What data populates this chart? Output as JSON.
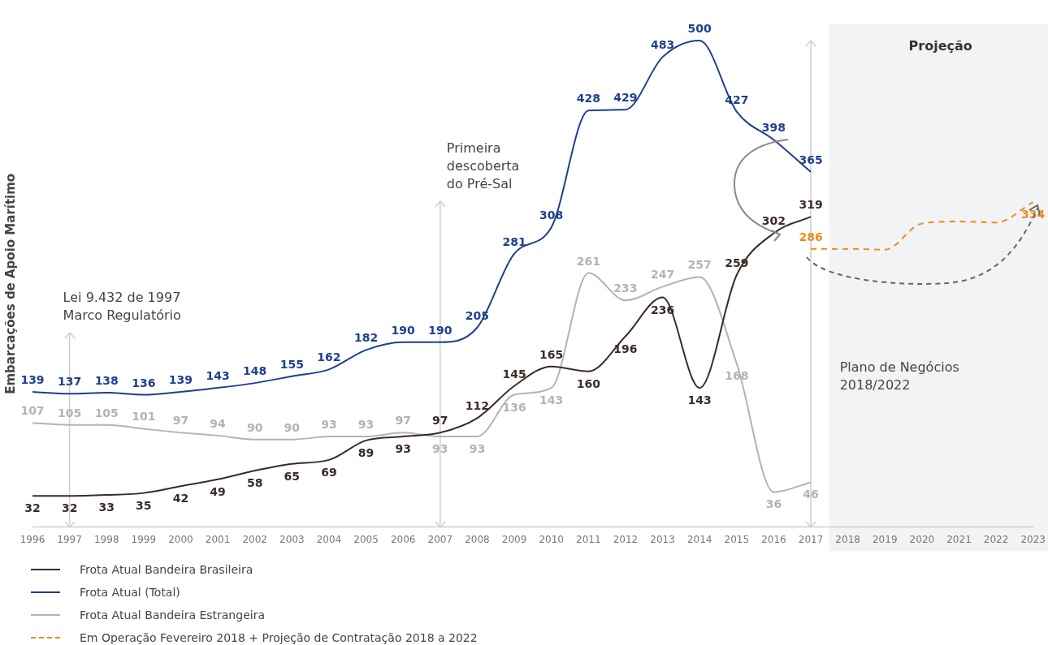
{
  "chart_data": {
    "type": "line",
    "ylabel": "Embarcações de Apoio Marítimo",
    "categories": [
      "1996",
      "1997",
      "1998",
      "1999",
      "2000",
      "2001",
      "2002",
      "2003",
      "2004",
      "2005",
      "2006",
      "2007",
      "2008",
      "2009",
      "2010",
      "2011",
      "2012",
      "2013",
      "2014",
      "2015",
      "2016",
      "2017",
      "2018",
      "2019",
      "2020",
      "2021",
      "2022",
      "2023"
    ],
    "series": [
      {
        "name": "Frota Atual Bandeira Brasileira",
        "color": "#3b2b27",
        "values": [
          32,
          32,
          33,
          35,
          42,
          49,
          58,
          65,
          69,
          89,
          93,
          97,
          112,
          145,
          165,
          160,
          196,
          236,
          143,
          259,
          302,
          319,
          null,
          null,
          null,
          null,
          null,
          null
        ],
        "value_labels": [
          "32",
          "32",
          "33",
          "35",
          "42",
          "49",
          "58",
          "65",
          "69",
          "89",
          "93",
          "97",
          "112",
          "145",
          "165",
          "160",
          "196",
          "236",
          "143",
          "259",
          "302",
          "319",
          null,
          null,
          null,
          null,
          null,
          null
        ]
      },
      {
        "name": "Frota Atual (Total)",
        "color": "#1f3f8f",
        "values": [
          139,
          137,
          138,
          136,
          139,
          143,
          148,
          155,
          162,
          182,
          190,
          190,
          205,
          281,
          308,
          428,
          429,
          483,
          500,
          427,
          398,
          365,
          null,
          null,
          null,
          null,
          null,
          null
        ],
        "value_labels": [
          "139",
          "137",
          "138",
          "136",
          "139",
          "143",
          "148",
          "155",
          "162",
          "182",
          "190",
          "190",
          "205",
          "281",
          "308",
          "428",
          "429",
          "483",
          "500",
          "427",
          "398",
          "365",
          null,
          null,
          null,
          null,
          null,
          null
        ]
      },
      {
        "name": "Frota Atual Bandeira Estrangeira",
        "color": "#b3b3b3",
        "values": [
          107,
          105,
          105,
          101,
          97,
          94,
          90,
          90,
          93,
          93,
          97,
          93,
          93,
          136,
          143,
          261,
          233,
          247,
          257,
          168,
          36,
          46,
          null,
          null,
          null,
          null,
          null,
          null
        ],
        "value_labels": [
          "107",
          "105",
          "105",
          "101",
          "97",
          "94",
          "90",
          "90",
          "93",
          "93",
          "97",
          "93",
          "93",
          "136",
          "143",
          "261",
          "233",
          "247",
          "257",
          "168",
          "36",
          "46",
          null,
          null,
          null,
          null,
          null,
          null
        ]
      },
      {
        "name": "Em Operação Fevereiro 2018 + Projeção de Contratação 2018 a 2022",
        "color": "#f08a1d",
        "line_style": "dashed",
        "values": [
          null,
          null,
          null,
          null,
          null,
          null,
          null,
          null,
          null,
          null,
          null,
          null,
          null,
          null,
          null,
          null,
          null,
          null,
          null,
          null,
          null,
          286,
          286,
          285,
          312,
          314,
          313,
          334
        ],
        "value_labels": [
          null,
          null,
          null,
          null,
          null,
          null,
          null,
          null,
          null,
          null,
          null,
          null,
          null,
          null,
          null,
          null,
          null,
          null,
          null,
          null,
          null,
          "286",
          null,
          null,
          null,
          null,
          null,
          "334"
        ]
      }
    ],
    "ref_lines": [
      {
        "axis": "x",
        "value": "1997",
        "label": "Lei 9.432 de 1997\nMarco Regulatório",
        "color": "#cfcfcf"
      },
      {
        "axis": "x",
        "value": "2007",
        "label": "Primeira\ndescoberta\ndo Pré-Sal",
        "color": "#cfcfcf"
      },
      {
        "axis": "x",
        "value": "2017",
        "color": "#cfcfcf"
      }
    ],
    "bands": [
      {
        "axis": "x",
        "from": "2018",
        "to": "2023",
        "label": "Projeção",
        "color": "#f2f3f5"
      }
    ],
    "annotations": [
      "Plano de Negócios\n2018/2022"
    ],
    "legend": "bottom left",
    "grid": false,
    "marker": "none",
    "tick_labels": "x"
  }
}
